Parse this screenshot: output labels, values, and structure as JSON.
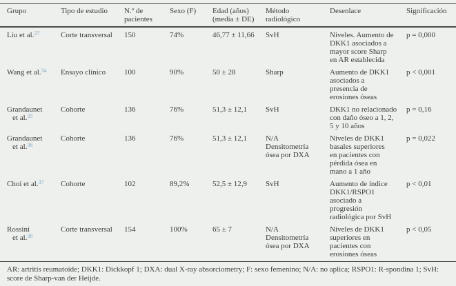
{
  "colors": {
    "background": "#eef0ed",
    "text": "#3c3c38",
    "reference_link": "#7ea9c8",
    "rule": "#4c4c4a"
  },
  "table": {
    "columns": [
      "Grupo",
      "Tipo de estudio",
      "N.º de\npacientes",
      "Sexo (F)",
      "Edad (años)\n(media ± DE)",
      "Método\nradiológico",
      "Desenlace",
      "Significación"
    ],
    "rows": [
      {
        "grupo_lines": [
          "Liu et al."
        ],
        "ref": "27",
        "tipo_de_estudio": "Corte transversal",
        "n_pacientes": "150",
        "sexo_f": "74%",
        "edad": "46,77 ± 11,66",
        "metodo_radiologico": "SvH",
        "desenlace": "Niveles. Aumento de\nDKK1 asociados a\nmayor score Sharp\nen AR establecida",
        "significacion": "p = 0,000"
      },
      {
        "grupo_lines": [
          "Wang et al."
        ],
        "ref": "34",
        "tipo_de_estudio": "Ensayo clínico",
        "n_pacientes": "100",
        "sexo_f": "90%",
        "edad": "50 ± 28",
        "metodo_radiologico": "Sharp",
        "desenlace": "Aumento de DKK1\nasociados a\npresencia de\nerosiones óseas",
        "significacion": "p < 0,001"
      },
      {
        "grupo_lines": [
          "Grandaunet",
          "et al."
        ],
        "ref": "35",
        "tipo_de_estudio": "Cohorte",
        "n_pacientes": "136",
        "sexo_f": "76%",
        "edad": "51,3 ± 12,1",
        "metodo_radiologico": "SvH",
        "desenlace": "DKK1 no relacionado\ncon daño óseo a 1, 2,\n5 y 10 años",
        "significacion": "p = 0,16"
      },
      {
        "grupo_lines": [
          "Grandaunet",
          "et al."
        ],
        "ref": "36",
        "tipo_de_estudio": "Cohorte",
        "n_pacientes": "136",
        "sexo_f": "76%",
        "edad": "51,3 ± 12,1",
        "metodo_radiologico": "N/A\nDensitometría\nósea por DXA",
        "desenlace": "Niveles de DKK1\nbasales superiores\nen pacientes con\npérdida ósea en\nmano a 1 año",
        "significacion": "p = 0,022"
      },
      {
        "grupo_lines": [
          "Choi et al."
        ],
        "ref": "37",
        "tipo_de_estudio": "Cohorte",
        "n_pacientes": "102",
        "sexo_f": "89,2%",
        "edad": "52,5 ± 12,9",
        "metodo_radiologico": "SvH",
        "desenlace": "Aumento de índice\nDKK1/RSPO1\nasociado a\nprogresión\nradiológica por SvH",
        "significacion": "p < 0,01"
      },
      {
        "grupo_lines": [
          "Rossini",
          "et al."
        ],
        "ref": "38",
        "tipo_de_estudio": "Corte transversal",
        "n_pacientes": "154",
        "sexo_f": "100%",
        "edad": "65 ± 7",
        "metodo_radiologico": "N/A\nDensitometría\nósea por DXA",
        "desenlace": "Niveles de DKK1\nsuperiores en\npacientes con\nerosiones óseas",
        "significacion": "p < 0,05"
      }
    ],
    "footnote": "AR: artritis reumatoide; DKK1: Dickkopf 1; DXA: dual X-ray absorciometry; F: sexo femenino; N/A: no aplica; RSPO1: R-spondina 1; SvH: score de Sharp-van der Heijde."
  }
}
